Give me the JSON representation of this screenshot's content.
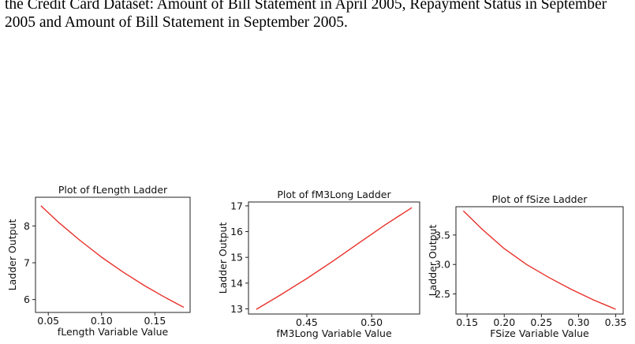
{
  "caption": {
    "line1": "the Credit Card Dataset: Amount of Bill Statement in April 2005, Repayment Status in September",
    "line2": "2005 and Amount of Bill Statement in September 2005."
  },
  "colors": {
    "curve": "#e8302a",
    "axis": "#222222"
  },
  "chart_data": [
    {
      "type": "line",
      "title": "Plot of fLength Ladder",
      "xlabel": "fLength Variable Value",
      "ylabel": "Ladder Output",
      "xticks": [
        "0.05",
        "0.10",
        "0.15"
      ],
      "yticks": [
        "6",
        "7",
        "8"
      ],
      "xlim": [
        0.038,
        0.183
      ],
      "ylim": [
        5.65,
        8.78
      ],
      "x": [
        0.043,
        0.06,
        0.08,
        0.1,
        0.12,
        0.14,
        0.16,
        0.177
      ],
      "y": [
        8.55,
        8.09,
        7.6,
        7.15,
        6.75,
        6.38,
        6.05,
        5.79
      ]
    },
    {
      "type": "line",
      "title": "Plot of fM3Long Ladder",
      "xlabel": "fM3Long Variable Value",
      "ylabel": "Ladder Output",
      "xticks": [
        "0.45",
        "0.50"
      ],
      "yticks": [
        "13",
        "14",
        "15",
        "16",
        "17"
      ],
      "xlim": [
        0.405,
        0.537
      ],
      "ylim": [
        12.8,
        17.15
      ],
      "x": [
        0.411,
        0.43,
        0.45,
        0.47,
        0.49,
        0.51,
        0.531
      ],
      "y": [
        12.98,
        13.55,
        14.18,
        14.85,
        15.55,
        16.25,
        16.93
      ]
    },
    {
      "type": "line",
      "title": "Plot of fSize Ladder",
      "xlabel": "FSize Variable Value",
      "ylabel": "Ladder Output",
      "xticks": [
        "0.15",
        "0.20",
        "0.25",
        "0.30",
        "0.35"
      ],
      "yticks": [
        "2.5",
        "3.0",
        "3.5"
      ],
      "xlim": [
        0.135,
        0.36
      ],
      "ylim": [
        2.16,
        3.98
      ],
      "x": [
        0.145,
        0.17,
        0.2,
        0.23,
        0.26,
        0.29,
        0.32,
        0.35
      ],
      "y": [
        3.91,
        3.6,
        3.27,
        3.0,
        2.78,
        2.58,
        2.4,
        2.24
      ]
    }
  ]
}
